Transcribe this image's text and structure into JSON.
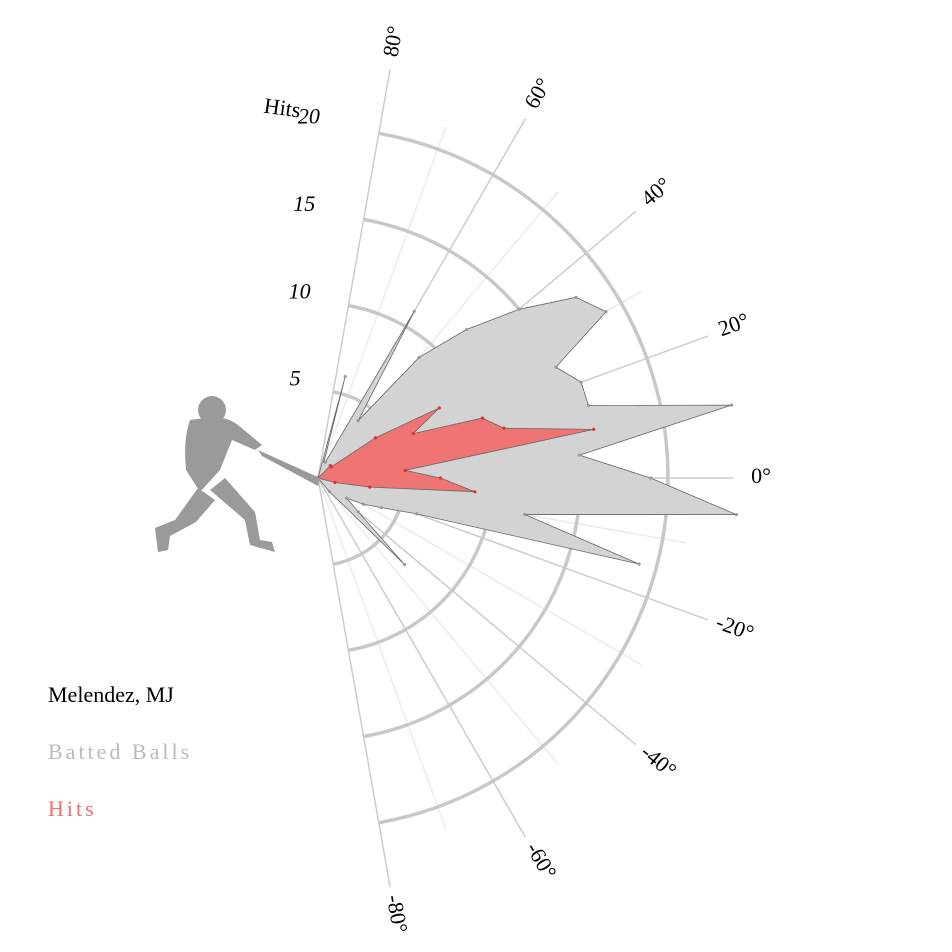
{
  "chart_data": {
    "type": "polar",
    "x": [
      75,
      70,
      65,
      60,
      55,
      50,
      45,
      40,
      35,
      30,
      25,
      20,
      15,
      10,
      5,
      0,
      -5,
      -10,
      -15,
      -20,
      -25,
      -30,
      -35,
      -40,
      -45,
      -50
    ],
    "series": [
      {
        "name": "Batted Balls",
        "color": "#d3d3d3",
        "values": [
          6,
          1,
          1,
          11,
          4,
          9,
          12,
          15,
          18,
          19,
          15,
          16,
          16,
          24,
          15,
          19,
          24,
          12,
          19,
          6,
          4,
          3,
          2,
          3,
          7,
          1
        ]
      },
      {
        "name": "Hits",
        "color": "#f07070",
        "values": [
          0,
          0,
          0,
          0,
          0,
          0,
          1,
          1,
          4,
          8,
          6,
          10,
          11,
          16,
          5,
          7,
          9,
          3,
          1,
          0,
          0,
          0,
          0,
          0,
          0,
          0
        ]
      }
    ],
    "player": "Melendez, MJ",
    "ylabel": "Hits",
    "ylim": [
      0,
      20
    ],
    "yticks": [
      5,
      10,
      15,
      20
    ],
    "xlim": [
      -80,
      80
    ],
    "xticks": [
      {
        "value": -80,
        "label": "-80°"
      },
      {
        "value": -60,
        "label": "-60°"
      },
      {
        "value": -40,
        "label": "-40°"
      },
      {
        "value": -20,
        "label": "-20°"
      },
      {
        "value": 0,
        "label": "0°"
      },
      {
        "value": 20,
        "label": "20°"
      },
      {
        "value": 40,
        "label": "40°"
      },
      {
        "value": 60,
        "label": "60°"
      },
      {
        "value": 80,
        "label": "80°"
      }
    ],
    "xminorticks": [
      -70,
      -50,
      -30,
      -10,
      10,
      30,
      50,
      70
    ]
  }
}
